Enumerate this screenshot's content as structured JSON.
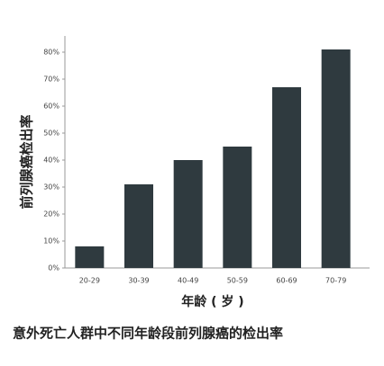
{
  "chart_data": {
    "type": "bar",
    "y_label": "前列腺癌检出率",
    "x_label": "年龄 ( 岁 )",
    "caption": "意外死亡人群中不同年龄段前列腺癌的检出率",
    "categories": [
      "20-29",
      "30-39",
      "40-49",
      "50-59",
      "60-69",
      "70-79"
    ],
    "values": [
      8,
      31,
      40,
      45,
      67,
      81
    ],
    "color": "#2f3a3f",
    "ylim": [
      0,
      86
    ],
    "yticks": [
      {
        "value": 0,
        "label": "0%"
      },
      {
        "value": 10,
        "label": "10%"
      },
      {
        "value": 20,
        "label": "20%"
      },
      {
        "value": 30,
        "label": "30%"
      },
      {
        "value": 40,
        "label": "40%"
      },
      {
        "value": 50,
        "label": "50%"
      },
      {
        "value": 60,
        "label": "60%"
      },
      {
        "value": 70,
        "label": "70%"
      },
      {
        "value": 80,
        "label": "80%"
      }
    ]
  }
}
